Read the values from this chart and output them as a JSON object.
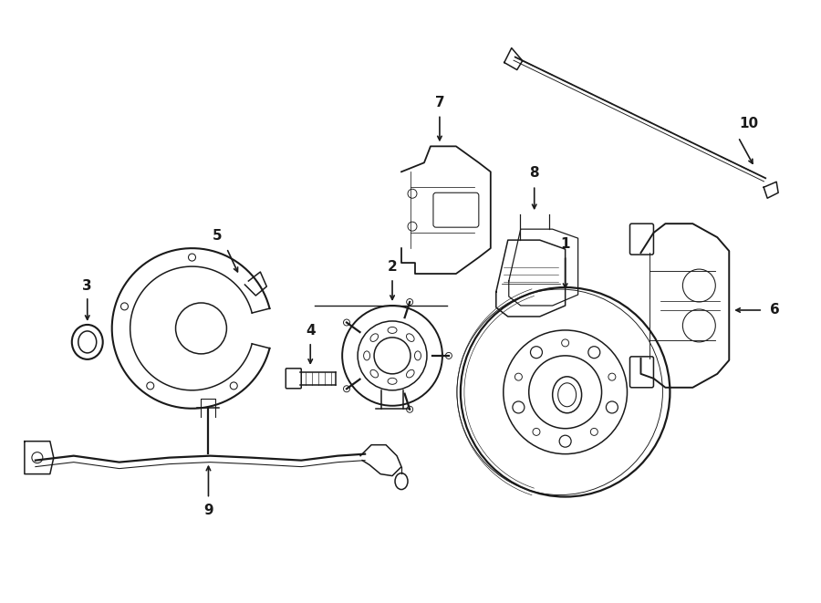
{
  "bg_color": "#ffffff",
  "line_color": "#1a1a1a",
  "lw": 1.1,
  "fig_width": 9.0,
  "fig_height": 6.61
}
